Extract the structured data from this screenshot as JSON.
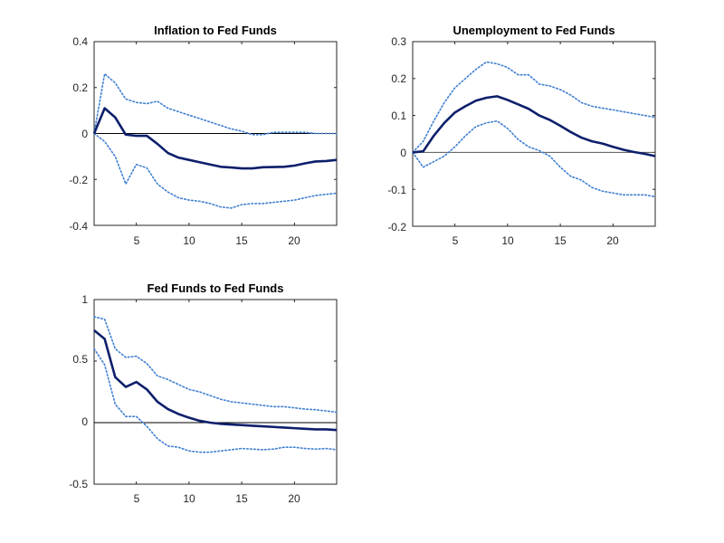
{
  "chart_data": [
    {
      "type": "line",
      "title": "Inflation to Fed Funds",
      "xlim": [
        1,
        24
      ],
      "ylim": [
        -0.4,
        0.4
      ],
      "xticks": [
        5,
        10,
        15,
        20
      ],
      "xtick_labels": [
        "5",
        "10",
        "15",
        "20"
      ],
      "yticks": [
        -0.4,
        -0.2,
        0,
        0.2,
        0.4
      ],
      "ytick_labels": [
        "-0.4",
        "-0.2",
        "0",
        "0.2",
        "0.4"
      ],
      "x": [
        1,
        2,
        3,
        4,
        5,
        6,
        7,
        8,
        9,
        10,
        11,
        12,
        13,
        14,
        15,
        16,
        17,
        18,
        19,
        20,
        21,
        22,
        23,
        24
      ],
      "zero_line": true,
      "series": [
        {
          "style": "solid",
          "color": "#0d1f6b",
          "values": [
            0.0,
            0.11,
            0.07,
            -0.005,
            -0.01,
            -0.01,
            -0.045,
            -0.085,
            -0.105,
            -0.115,
            -0.125,
            -0.135,
            -0.145,
            -0.148,
            -0.152,
            -0.152,
            -0.147,
            -0.146,
            -0.145,
            -0.14,
            -0.13,
            -0.122,
            -0.12,
            -0.115
          ]
        },
        {
          "style": "dotted",
          "color": "#3f7fd0",
          "values": [
            0.0,
            0.26,
            0.22,
            0.15,
            0.135,
            0.13,
            0.14,
            0.11,
            0.095,
            0.08,
            0.065,
            0.05,
            0.035,
            0.02,
            0.01,
            -0.005,
            -0.005,
            0.005,
            0.005,
            0.005,
            0.005,
            0.0,
            0.0,
            0.0
          ]
        },
        {
          "style": "dotted",
          "color": "#3f7fd0",
          "values": [
            0.0,
            -0.035,
            -0.1,
            -0.22,
            -0.135,
            -0.15,
            -0.22,
            -0.255,
            -0.28,
            -0.29,
            -0.295,
            -0.305,
            -0.32,
            -0.325,
            -0.31,
            -0.305,
            -0.305,
            -0.3,
            -0.295,
            -0.29,
            -0.28,
            -0.27,
            -0.265,
            -0.26
          ]
        }
      ]
    },
    {
      "type": "line",
      "title": "Unemployment to Fed Funds",
      "xlim": [
        1,
        24
      ],
      "ylim": [
        -0.2,
        0.3
      ],
      "xticks": [
        5,
        10,
        15,
        20
      ],
      "xtick_labels": [
        "5",
        "10",
        "15",
        "20"
      ],
      "yticks": [
        -0.2,
        -0.1,
        0,
        0.1,
        0.2,
        0.3
      ],
      "ytick_labels": [
        "-0.2",
        "-0.1",
        "0",
        "0.1",
        "0.2",
        "0.3"
      ],
      "x": [
        1,
        2,
        3,
        4,
        5,
        6,
        7,
        8,
        9,
        10,
        11,
        12,
        13,
        14,
        15,
        16,
        17,
        18,
        19,
        20,
        21,
        22,
        23,
        24
      ],
      "zero_line": true,
      "series": [
        {
          "style": "solid",
          "color": "#0d1f6b",
          "values": [
            0.0,
            0.003,
            0.045,
            0.08,
            0.108,
            0.125,
            0.14,
            0.148,
            0.152,
            0.142,
            0.13,
            0.118,
            0.1,
            0.088,
            0.072,
            0.055,
            0.04,
            0.03,
            0.024,
            0.015,
            0.007,
            0.001,
            -0.004,
            -0.01
          ]
        },
        {
          "style": "dotted",
          "color": "#3f7fd0",
          "values": [
            0.0,
            0.03,
            0.085,
            0.135,
            0.175,
            0.2,
            0.225,
            0.245,
            0.24,
            0.23,
            0.21,
            0.21,
            0.185,
            0.18,
            0.17,
            0.155,
            0.135,
            0.125,
            0.12,
            0.115,
            0.11,
            0.105,
            0.1,
            0.095
          ]
        },
        {
          "style": "dotted",
          "color": "#3f7fd0",
          "values": [
            0.0,
            -0.04,
            -0.025,
            -0.01,
            0.015,
            0.045,
            0.07,
            0.08,
            0.085,
            0.065,
            0.035,
            0.015,
            0.005,
            -0.01,
            -0.04,
            -0.065,
            -0.075,
            -0.095,
            -0.105,
            -0.11,
            -0.115,
            -0.115,
            -0.115,
            -0.12
          ]
        }
      ]
    },
    {
      "type": "line",
      "title": "Fed Funds to Fed Funds",
      "xlim": [
        1,
        24
      ],
      "ylim": [
        -0.5,
        1
      ],
      "xticks": [
        5,
        10,
        15,
        20
      ],
      "xtick_labels": [
        "5",
        "10",
        "15",
        "20"
      ],
      "yticks": [
        -0.5,
        0,
        0.5,
        1
      ],
      "ytick_labels": [
        "-0.5",
        "0",
        "0.5",
        "1"
      ],
      "x": [
        1,
        2,
        3,
        4,
        5,
        6,
        7,
        8,
        9,
        10,
        11,
        12,
        13,
        14,
        15,
        16,
        17,
        18,
        19,
        20,
        21,
        22,
        23,
        24
      ],
      "zero_line": true,
      "series": [
        {
          "style": "solid",
          "color": "#0d1f6b",
          "values": [
            0.75,
            0.68,
            0.37,
            0.29,
            0.33,
            0.27,
            0.17,
            0.11,
            0.07,
            0.04,
            0.015,
            0.0,
            -0.01,
            -0.015,
            -0.02,
            -0.025,
            -0.03,
            -0.035,
            -0.04,
            -0.045,
            -0.05,
            -0.055,
            -0.055,
            -0.06
          ]
        },
        {
          "style": "dotted",
          "color": "#3f7fd0",
          "values": [
            0.86,
            0.84,
            0.6,
            0.53,
            0.54,
            0.48,
            0.38,
            0.35,
            0.31,
            0.27,
            0.25,
            0.22,
            0.19,
            0.17,
            0.16,
            0.15,
            0.14,
            0.13,
            0.13,
            0.12,
            0.11,
            0.105,
            0.095,
            0.085
          ]
        },
        {
          "style": "dotted",
          "color": "#3f7fd0",
          "values": [
            0.6,
            0.47,
            0.15,
            0.05,
            0.05,
            -0.03,
            -0.13,
            -0.19,
            -0.2,
            -0.23,
            -0.24,
            -0.24,
            -0.23,
            -0.22,
            -0.21,
            -0.215,
            -0.22,
            -0.215,
            -0.2,
            -0.2,
            -0.21,
            -0.215,
            -0.21,
            -0.22
          ]
        }
      ]
    }
  ]
}
